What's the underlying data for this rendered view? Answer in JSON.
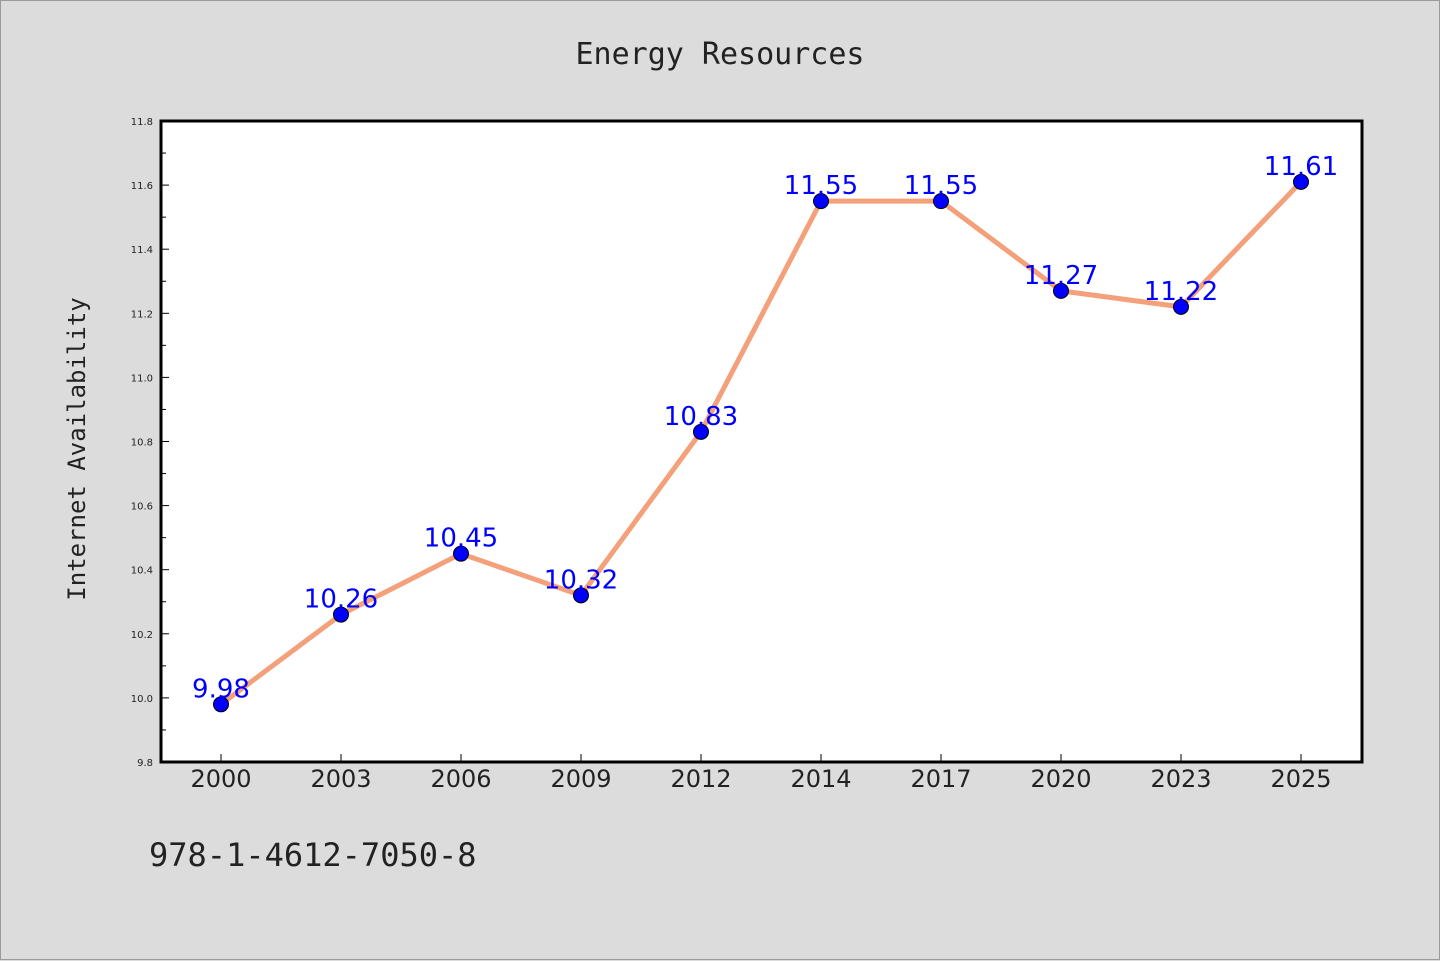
{
  "chart_data": {
    "type": "line",
    "title": "Energy Resources",
    "xlabel": "",
    "ylabel": "Internet Availability",
    "categories": [
      "2000",
      "2003",
      "2006",
      "2009",
      "2012",
      "2014",
      "2017",
      "2020",
      "2023",
      "2025"
    ],
    "series": [
      {
        "values": [
          9.98,
          10.26,
          10.45,
          10.32,
          10.83,
          11.55,
          11.55,
          11.27,
          11.22,
          11.61
        ],
        "labels": [
          "9.98",
          "10.26",
          "10.45",
          "10.32",
          "10.83",
          "11.55",
          "11.55",
          "11.27",
          "11.22",
          "11.61"
        ]
      }
    ],
    "ylim": [
      9.8,
      11.8
    ],
    "yticks": [
      "9.8",
      "10.0",
      "10.2",
      "10.4",
      "10.6",
      "10.8",
      "11.0",
      "11.2",
      "11.4",
      "11.6",
      "11.8"
    ],
    "grid": false,
    "colors": {
      "line": "#f4a07a",
      "marker": "#0000ff",
      "label": "#0000ff",
      "background": "#dcdcdc",
      "plot_background": "#ffffff"
    }
  },
  "footnote": "978-1-4612-7050-8"
}
